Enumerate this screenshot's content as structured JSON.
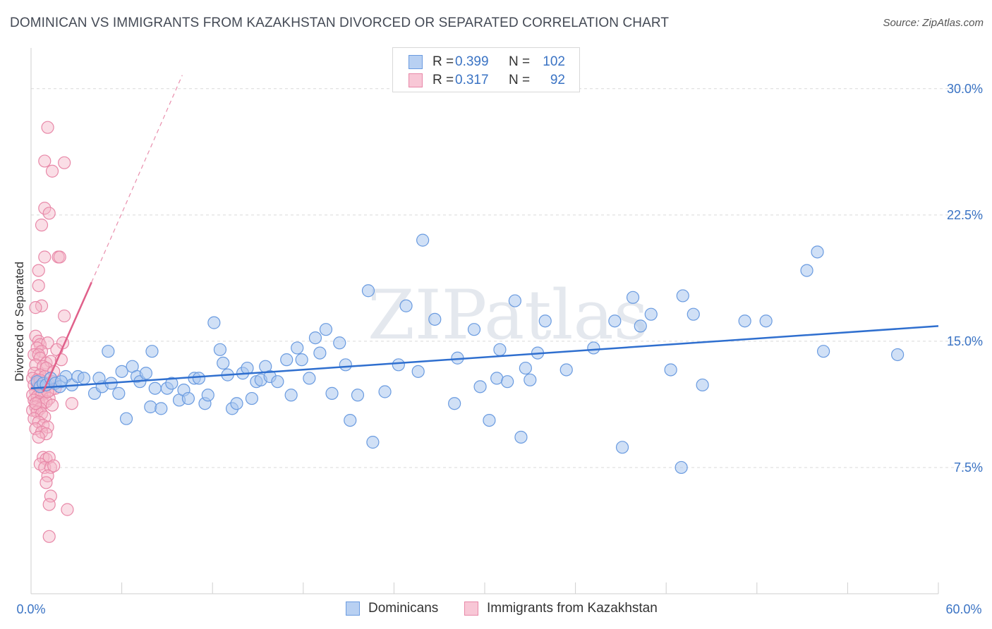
{
  "title": "DOMINICAN VS IMMIGRANTS FROM KAZAKHSTAN DIVORCED OR SEPARATED CORRELATION CHART",
  "source": "Source: ZipAtlas.com",
  "watermark": "ZIPatlas",
  "legend": {
    "rows": [
      {
        "r_label": "R =",
        "r_value": "0.399",
        "n_label": "N =",
        "n_value": "102"
      },
      {
        "r_label": "R =",
        "r_value": "0.317",
        "n_label": "N =",
        "n_value": "92"
      }
    ]
  },
  "bottom_legend": [
    "Dominicans",
    "Immigrants from Kazakhstan"
  ],
  "colors": {
    "blue_fill": "#a9c6ee",
    "blue_stroke": "#6a9be0",
    "blue_line": "#2f6fcf",
    "pink_fill": "#f5b5c8",
    "pink_stroke": "#e888a8",
    "pink_line": "#e0608a",
    "tick_text": "#3a73c4",
    "grid": "#d9d9d9"
  },
  "chart_data": {
    "type": "scatter",
    "title": "DOMINICAN VS IMMIGRANTS FROM KAZAKHSTAN DIVORCED OR SEPARATED CORRELATION CHART",
    "xlabel": "",
    "ylabel": "Divorced or Separated",
    "xlim": [
      0,
      60
    ],
    "ylim": [
      0,
      32
    ],
    "x_tick_labels": [
      "0.0%",
      "60.0%"
    ],
    "y_ticks": [
      7.5,
      15.0,
      22.5,
      30.0
    ],
    "y_tick_labels": [
      "7.5%",
      "15.0%",
      "22.5%",
      "30.0%"
    ],
    "grid": true,
    "legend_position": "top-center",
    "series": [
      {
        "name": "Dominicans",
        "trend": {
          "x": [
            0,
            60
          ],
          "y": [
            12.2,
            15.9
          ]
        },
        "points": [
          [
            0.4,
            12.6
          ],
          [
            0.6,
            12.3
          ],
          [
            0.8,
            12.5
          ],
          [
            1.0,
            12.4
          ],
          [
            1.3,
            12.8
          ],
          [
            1.6,
            12.5
          ],
          [
            1.9,
            12.3
          ],
          [
            2.3,
            12.9
          ],
          [
            2.7,
            12.4
          ],
          [
            3.1,
            12.9
          ],
          [
            3.5,
            12.8
          ],
          [
            4.2,
            11.9
          ],
          [
            4.7,
            12.3
          ],
          [
            5.1,
            14.4
          ],
          [
            5.3,
            12.5
          ],
          [
            5.8,
            11.9
          ],
          [
            6.0,
            13.2
          ],
          [
            6.3,
            10.4
          ],
          [
            6.7,
            13.5
          ],
          [
            7.0,
            12.9
          ],
          [
            7.2,
            12.6
          ],
          [
            7.6,
            13.1
          ],
          [
            7.9,
            11.1
          ],
          [
            8.0,
            14.4
          ],
          [
            8.2,
            12.2
          ],
          [
            8.6,
            11.0
          ],
          [
            9.0,
            12.2
          ],
          [
            9.3,
            12.5
          ],
          [
            9.8,
            11.5
          ],
          [
            10.1,
            12.1
          ],
          [
            10.4,
            11.6
          ],
          [
            10.8,
            12.8
          ],
          [
            11.1,
            12.8
          ],
          [
            11.5,
            11.3
          ],
          [
            11.7,
            11.8
          ],
          [
            12.1,
            16.1
          ],
          [
            12.5,
            14.5
          ],
          [
            12.7,
            13.7
          ],
          [
            13.0,
            13.0
          ],
          [
            13.3,
            11.0
          ],
          [
            13.6,
            11.3
          ],
          [
            14.0,
            13.1
          ],
          [
            14.3,
            13.4
          ],
          [
            14.6,
            11.6
          ],
          [
            14.9,
            12.6
          ],
          [
            15.2,
            12.7
          ],
          [
            15.5,
            13.5
          ],
          [
            15.8,
            12.9
          ],
          [
            16.3,
            12.6
          ],
          [
            16.9,
            13.9
          ],
          [
            17.2,
            11.8
          ],
          [
            17.6,
            14.6
          ],
          [
            17.9,
            13.9
          ],
          [
            18.4,
            12.8
          ],
          [
            18.8,
            15.2
          ],
          [
            19.1,
            14.3
          ],
          [
            19.5,
            15.7
          ],
          [
            19.9,
            11.9
          ],
          [
            20.4,
            14.9
          ],
          [
            20.8,
            13.6
          ],
          [
            21.1,
            10.3
          ],
          [
            21.6,
            11.8
          ],
          [
            22.3,
            18.0
          ],
          [
            22.6,
            9.0
          ],
          [
            23.4,
            12.0
          ],
          [
            24.3,
            13.6
          ],
          [
            24.8,
            17.1
          ],
          [
            25.6,
            13.2
          ],
          [
            25.9,
            21.0
          ],
          [
            26.7,
            16.3
          ],
          [
            28.0,
            11.3
          ],
          [
            28.2,
            14.0
          ],
          [
            29.3,
            15.7
          ],
          [
            29.7,
            12.3
          ],
          [
            30.3,
            10.3
          ],
          [
            30.8,
            12.8
          ],
          [
            31.0,
            14.5
          ],
          [
            31.5,
            12.6
          ],
          [
            32.0,
            17.4
          ],
          [
            32.4,
            9.3
          ],
          [
            32.7,
            13.4
          ],
          [
            33.0,
            12.7
          ],
          [
            33.5,
            14.3
          ],
          [
            34.0,
            16.2
          ],
          [
            35.4,
            13.3
          ],
          [
            37.2,
            14.6
          ],
          [
            38.6,
            16.2
          ],
          [
            39.1,
            8.7
          ],
          [
            39.8,
            17.6
          ],
          [
            40.3,
            15.9
          ],
          [
            41.0,
            16.6
          ],
          [
            42.3,
            13.3
          ],
          [
            43.1,
            17.7
          ],
          [
            43.0,
            7.5
          ],
          [
            43.8,
            16.6
          ],
          [
            44.4,
            12.4
          ],
          [
            47.2,
            16.2
          ],
          [
            48.6,
            16.2
          ],
          [
            51.3,
            19.2
          ],
          [
            52.0,
            20.3
          ],
          [
            52.4,
            14.4
          ],
          [
            57.3,
            14.2
          ],
          [
            4.5,
            12.8
          ],
          [
            2.0,
            12.6
          ]
        ]
      },
      {
        "name": "Immigrants from Kazakhstan",
        "trend": {
          "x": [
            0.8,
            4.0
          ],
          "y": [
            12.0,
            18.5
          ]
        },
        "trend_dashed": {
          "x": [
            4.0,
            10.0
          ],
          "y": [
            18.5,
            30.8
          ]
        },
        "points": [
          [
            1.1,
            27.7
          ],
          [
            0.9,
            25.7
          ],
          [
            2.2,
            25.6
          ],
          [
            1.4,
            25.1
          ],
          [
            0.9,
            22.9
          ],
          [
            1.2,
            22.6
          ],
          [
            0.7,
            21.9
          ],
          [
            0.9,
            20.0
          ],
          [
            1.8,
            20.0
          ],
          [
            1.9,
            20.0
          ],
          [
            0.5,
            19.2
          ],
          [
            0.5,
            18.3
          ],
          [
            0.7,
            17.1
          ],
          [
            0.3,
            17.0
          ],
          [
            2.2,
            16.5
          ],
          [
            0.3,
            15.3
          ],
          [
            0.5,
            15.0
          ],
          [
            0.6,
            14.8
          ],
          [
            1.1,
            14.9
          ],
          [
            2.1,
            14.9
          ],
          [
            0.4,
            14.6
          ],
          [
            0.7,
            14.4
          ],
          [
            1.7,
            14.5
          ],
          [
            0.2,
            14.2
          ],
          [
            0.5,
            14.2
          ],
          [
            0.6,
            14.0
          ],
          [
            1.0,
            13.7
          ],
          [
            1.3,
            13.8
          ],
          [
            2.0,
            13.9
          ],
          [
            0.3,
            13.6
          ],
          [
            0.8,
            13.5
          ],
          [
            1.0,
            13.4
          ],
          [
            1.5,
            13.2
          ],
          [
            0.2,
            13.1
          ],
          [
            0.6,
            13.0
          ],
          [
            0.9,
            12.9
          ],
          [
            0.1,
            12.8
          ],
          [
            0.4,
            12.7
          ],
          [
            0.7,
            12.6
          ],
          [
            1.1,
            12.5
          ],
          [
            0.2,
            12.4
          ],
          [
            0.5,
            12.3
          ],
          [
            0.8,
            12.2
          ],
          [
            1.0,
            12.3
          ],
          [
            1.3,
            12.1
          ],
          [
            0.3,
            12.0
          ],
          [
            0.6,
            12.0
          ],
          [
            0.9,
            11.9
          ],
          [
            0.1,
            11.8
          ],
          [
            0.4,
            11.7
          ],
          [
            0.7,
            11.8
          ],
          [
            1.2,
            11.6
          ],
          [
            0.2,
            11.5
          ],
          [
            0.5,
            11.4
          ],
          [
            0.8,
            11.3
          ],
          [
            1.0,
            11.4
          ],
          [
            1.4,
            11.2
          ],
          [
            2.7,
            11.3
          ],
          [
            0.3,
            11.1
          ],
          [
            0.6,
            11.0
          ],
          [
            0.1,
            10.9
          ],
          [
            0.4,
            10.8
          ],
          [
            0.7,
            10.7
          ],
          [
            0.9,
            10.5
          ],
          [
            0.2,
            10.4
          ],
          [
            0.5,
            10.2
          ],
          [
            0.8,
            10.0
          ],
          [
            1.1,
            9.9
          ],
          [
            0.3,
            9.8
          ],
          [
            0.7,
            9.6
          ],
          [
            1.0,
            9.5
          ],
          [
            0.5,
            9.3
          ],
          [
            0.8,
            8.1
          ],
          [
            1.0,
            8.0
          ],
          [
            1.2,
            8.1
          ],
          [
            0.6,
            7.7
          ],
          [
            0.9,
            7.5
          ],
          [
            1.3,
            7.5
          ],
          [
            1.5,
            7.6
          ],
          [
            1.1,
            7.0
          ],
          [
            1.0,
            6.6
          ],
          [
            1.3,
            5.8
          ],
          [
            1.2,
            5.3
          ],
          [
            2.4,
            5.0
          ],
          [
            1.2,
            3.4
          ],
          [
            0.4,
            12.5
          ],
          [
            0.9,
            12.4
          ],
          [
            1.4,
            12.6
          ],
          [
            1.6,
            12.2
          ],
          [
            0.3,
            11.3
          ],
          [
            0.6,
            12.7
          ],
          [
            1.1,
            12.0
          ]
        ]
      }
    ]
  }
}
